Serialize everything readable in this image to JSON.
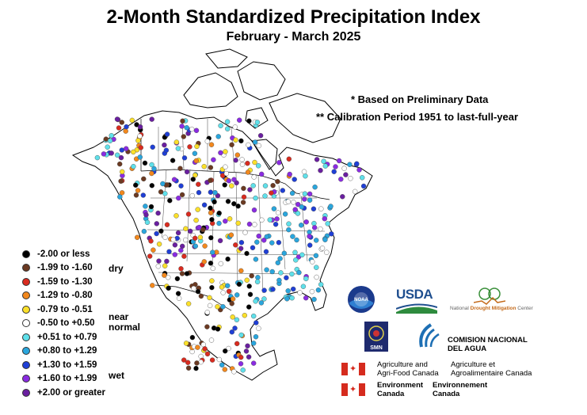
{
  "title": "2-Month Standardized Precipitation Index",
  "subtitle": "February - March 2025",
  "notes": {
    "preliminary": "* Based on Preliminary Data",
    "calibration": "** Calibration Period 1951 to last-full-year"
  },
  "legend": {
    "items": [
      {
        "label": "-2.00 or less",
        "color": "#000000"
      },
      {
        "label": "-1.99 to -1.60",
        "color": "#6b3a22"
      },
      {
        "label": "-1.59 to -1.30",
        "color": "#d92b1f"
      },
      {
        "label": "-1.29 to -0.80",
        "color": "#f2881d"
      },
      {
        "label": "-0.79 to -0.51",
        "color": "#fbe02a"
      },
      {
        "label": "-0.50 to +0.50",
        "color": "#ffffff"
      },
      {
        "label": "+0.51 to +0.79",
        "color": "#5fe0ea"
      },
      {
        "label": "+0.80 to +1.29",
        "color": "#2aa6dd"
      },
      {
        "label": "+1.30 to +1.59",
        "color": "#1f3fd6"
      },
      {
        "label": "+1.60 to +1.99",
        "color": "#8a2be2"
      },
      {
        "label": "+2.00 or greater",
        "color": "#6a1fa0"
      }
    ],
    "categories": {
      "dry": "dry",
      "near_normal_1": "near",
      "near_normal_2": "normal",
      "wet": "wet"
    }
  },
  "logos": {
    "noaa": "NOAA",
    "usda": "USDA",
    "ndmc_1": "National",
    "ndmc_2": "Drought Mitigation",
    "ndmc_3": "Center",
    "smn": "SMN",
    "conagua_1": "COMISION NACIONAL",
    "conagua_2": "DEL AGUA",
    "aafc_en_1": "Agriculture and",
    "aafc_en_2": "Agri-Food Canada",
    "aafc_fr_1": "Agriculture et",
    "aafc_fr_2": "Agroalimentaire Canada",
    "ec_en_1": "Environment",
    "ec_en_2": "Canada",
    "ec_fr_1": "Environnement",
    "ec_fr_2": "Canada"
  }
}
